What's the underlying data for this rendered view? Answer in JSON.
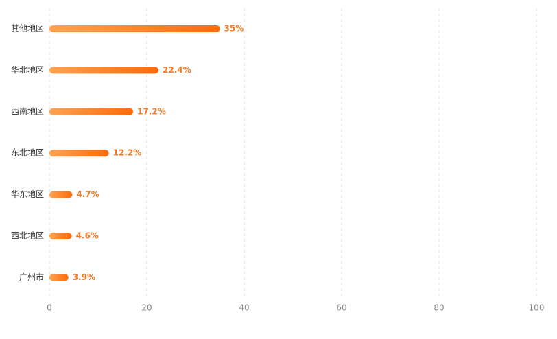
{
  "chart_data": {
    "type": "hbar",
    "categories": [
      "其他地区",
      "华北地区",
      "西南地区",
      "东北地区",
      "华东地区",
      "西北地区",
      "广州市"
    ],
    "values": [
      35,
      22.4,
      17.2,
      12.2,
      4.7,
      4.6,
      3.9
    ],
    "value_labels": [
      "35%",
      "22.4%",
      "17.2%",
      "12.2%",
      "4.7%",
      "4.6%",
      "3.9%"
    ],
    "colors": [
      "#ffa352",
      "#ff6a08"
    ],
    "xlim": [
      0,
      100
    ],
    "xticks": [
      0,
      20,
      40,
      60,
      80,
      100
    ],
    "grid": true
  }
}
